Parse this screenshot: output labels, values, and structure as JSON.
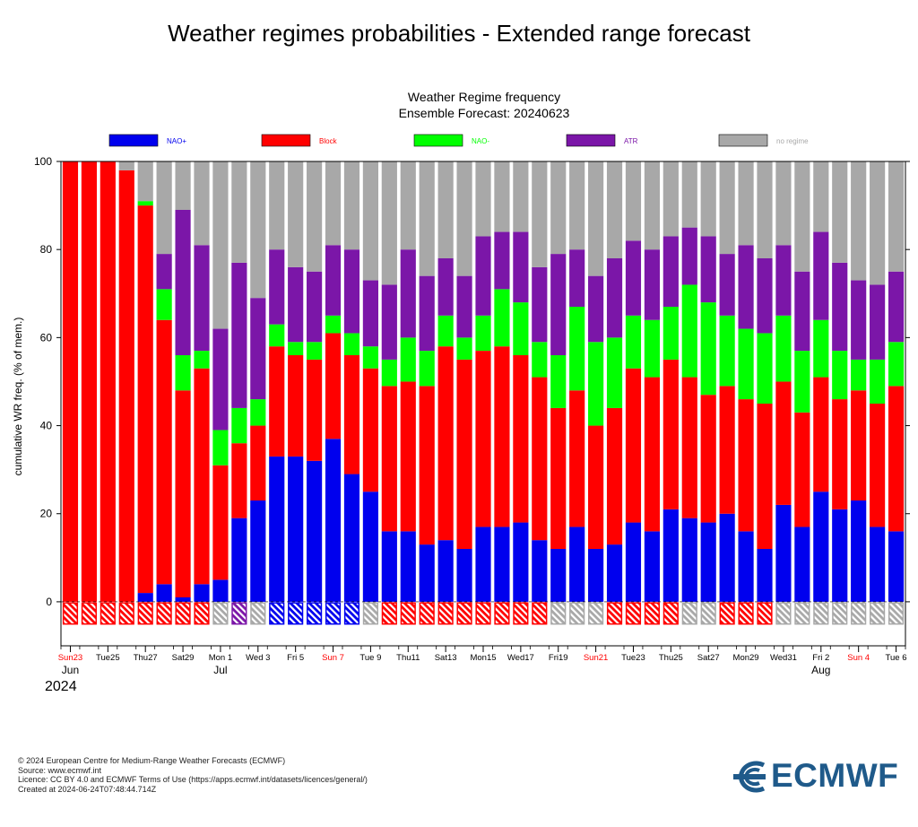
{
  "page": {
    "title": "Weather regimes probabilities - Extended range forecast"
  },
  "chart_data": {
    "type": "bar",
    "stacked": true,
    "title": "Weather Regime frequency",
    "subtitle": "Ensemble Forecast: 20240623",
    "ylabel": "cumulative WR freq. (% of mem.)",
    "xlabel": "",
    "ylim": [
      -10,
      100
    ],
    "yticks": [
      0,
      20,
      40,
      60,
      80,
      100
    ],
    "grid": false,
    "legend_position": "top",
    "series": [
      {
        "name": "NAO+",
        "color": "#0000ee",
        "values": [
          0,
          0,
          0,
          0,
          2,
          4,
          1,
          4,
          5,
          19,
          23,
          33,
          33,
          32,
          37,
          29,
          25,
          16,
          16,
          13,
          14,
          12,
          17,
          17,
          18,
          14,
          12,
          17,
          12,
          13,
          18,
          16,
          21,
          19,
          18,
          20,
          16,
          12,
          22,
          17,
          25,
          21,
          23,
          17,
          16
        ]
      },
      {
        "name": "Block",
        "color": "#ff0000",
        "values": [
          100,
          100,
          100,
          98,
          88,
          60,
          47,
          49,
          26,
          17,
          17,
          25,
          23,
          23,
          24,
          27,
          28,
          33,
          34,
          36,
          44,
          43,
          40,
          41,
          38,
          37,
          32,
          31,
          28,
          31,
          35,
          35,
          34,
          32,
          29,
          29,
          30,
          33,
          28,
          26,
          26,
          25,
          25,
          28,
          33
        ]
      },
      {
        "name": "NAO-",
        "color": "#00ff00",
        "values": [
          0,
          0,
          0,
          0,
          1,
          7,
          8,
          4,
          8,
          8,
          6,
          5,
          3,
          4,
          4,
          5,
          5,
          6,
          10,
          8,
          7,
          5,
          8,
          13,
          12,
          8,
          12,
          19,
          19,
          16,
          12,
          13,
          12,
          21,
          21,
          16,
          16,
          16,
          15,
          14,
          13,
          11,
          7,
          10,
          10
        ]
      },
      {
        "name": "ATR",
        "color": "#7b16a8",
        "values": [
          0,
          0,
          0,
          0,
          0,
          8,
          33,
          24,
          23,
          33,
          23,
          17,
          17,
          16,
          16,
          19,
          15,
          17,
          20,
          17,
          13,
          14,
          18,
          13,
          16,
          17,
          23,
          13,
          15,
          18,
          17,
          16,
          16,
          13,
          15,
          14,
          19,
          17,
          16,
          18,
          20,
          20,
          18,
          17,
          16
        ]
      },
      {
        "name": "no regime",
        "color": "#a8a8a8",
        "values": [
          0,
          0,
          0,
          2,
          9,
          21,
          11,
          19,
          38,
          23,
          31,
          20,
          24,
          25,
          19,
          20,
          27,
          28,
          20,
          26,
          22,
          26,
          17,
          16,
          16,
          24,
          21,
          20,
          26,
          22,
          18,
          20,
          17,
          15,
          17,
          21,
          19,
          22,
          19,
          25,
          16,
          23,
          27,
          28,
          25
        ]
      }
    ],
    "dominant_regime": [
      "Block",
      "Block",
      "Block",
      "Block",
      "Block",
      "Block",
      "Block",
      "Block",
      "no regime",
      "ATR",
      "no regime",
      "NAO+",
      "NAO+",
      "NAO+",
      "NAO+",
      "NAO+",
      "no regime",
      "Block",
      "Block",
      "Block",
      "Block",
      "Block",
      "Block",
      "Block",
      "Block",
      "Block",
      "no regime",
      "no regime",
      "no regime",
      "Block",
      "Block",
      "Block",
      "Block",
      "no regime",
      "no regime",
      "Block",
      "Block",
      "Block",
      "no regime",
      "no regime",
      "no regime",
      "no regime",
      "no regime",
      "no regime",
      "no regime"
    ],
    "x_tick_labels": [
      {
        "index": 0,
        "label": "Sun23",
        "red": true
      },
      {
        "index": 2,
        "label": "Tue25",
        "red": false
      },
      {
        "index": 4,
        "label": "Thu27",
        "red": false
      },
      {
        "index": 6,
        "label": "Sat29",
        "red": false
      },
      {
        "index": 8,
        "label": "Mon 1",
        "red": false
      },
      {
        "index": 10,
        "label": "Wed 3",
        "red": false
      },
      {
        "index": 12,
        "label": "Fri 5",
        "red": false
      },
      {
        "index": 14,
        "label": "Sun 7",
        "red": true
      },
      {
        "index": 16,
        "label": "Tue 9",
        "red": false
      },
      {
        "index": 18,
        "label": "Thu11",
        "red": false
      },
      {
        "index": 20,
        "label": "Sat13",
        "red": false
      },
      {
        "index": 22,
        "label": "Mon15",
        "red": false
      },
      {
        "index": 24,
        "label": "Wed17",
        "red": false
      },
      {
        "index": 26,
        "label": "Fri19",
        "red": false
      },
      {
        "index": 28,
        "label": "Sun21",
        "red": true
      },
      {
        "index": 30,
        "label": "Tue23",
        "red": false
      },
      {
        "index": 32,
        "label": "Thu25",
        "red": false
      },
      {
        "index": 34,
        "label": "Sat27",
        "red": false
      },
      {
        "index": 36,
        "label": "Mon29",
        "red": false
      },
      {
        "index": 38,
        "label": "Wed31",
        "red": false
      },
      {
        "index": 40,
        "label": "Fri 2",
        "red": false
      },
      {
        "index": 42,
        "label": "Sun 4",
        "red": true
      },
      {
        "index": 44,
        "label": "Tue 6",
        "red": false
      }
    ],
    "month_labels": [
      {
        "index": 0,
        "label": "Jun"
      },
      {
        "index": 8,
        "label": "Jul"
      },
      {
        "index": 40,
        "label": "Aug"
      }
    ],
    "year_label": "2024"
  },
  "footer": {
    "line1": "© 2024 European Centre for Medium-Range Weather Forecasts (ECMWF)",
    "line2": "Source: www.ecmwf.int",
    "line3": "Licence: CC BY 4.0 and ECMWF Terms of Use (https://apps.ecmwf.int/datasets/licences/general/)",
    "line4": "Created at 2024-06-24T07:48:44.714Z"
  },
  "logo": {
    "text": "ECMWF",
    "color": "#1f5a8a"
  }
}
